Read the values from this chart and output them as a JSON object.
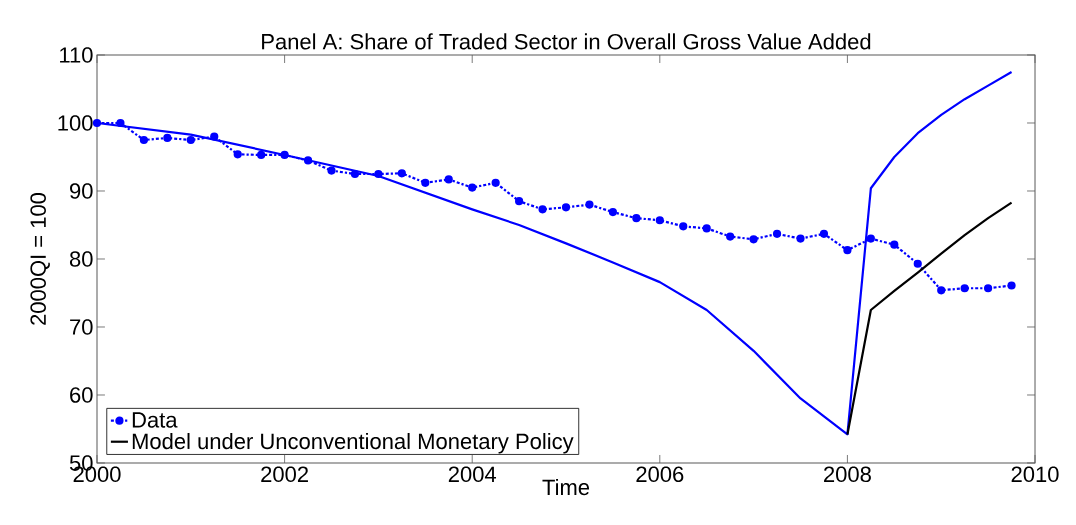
{
  "chart_data": {
    "type": "line",
    "title": "Panel A: Share of Traded Sector in Overall Gross Value Added",
    "xlabel": "Time",
    "ylabel": "2000QI = 100",
    "xlim": [
      2000,
      2010
    ],
    "ylim": [
      50,
      110
    ],
    "xticks": [
      2000,
      2002,
      2004,
      2006,
      2008,
      2010
    ],
    "yticks": [
      50,
      60,
      70,
      80,
      90,
      100,
      110
    ],
    "grid": false,
    "legend": "bottom left",
    "series": [
      {
        "name": "Data",
        "color": "#0000ff",
        "marker": "circle",
        "line_style": "dashdot",
        "x": [
          2000,
          2000.25,
          2000.5,
          2000.75,
          2001,
          2001.25,
          2001.5,
          2001.75,
          2002,
          2002.25,
          2002.5,
          2002.75,
          2003,
          2003.25,
          2003.5,
          2003.75,
          2004,
          2004.25,
          2004.5,
          2004.75,
          2005,
          2005.25,
          2005.5,
          2005.75,
          2006,
          2006.25,
          2006.5,
          2006.75,
          2007,
          2007.25,
          2007.5,
          2007.75,
          2008,
          2008.25,
          2008.5,
          2008.75,
          2009,
          2009.25,
          2009.5,
          2009.75
        ],
        "values": [
          100,
          100,
          97.5,
          97.8,
          97.5,
          98,
          95.4,
          95.3,
          95.3,
          94.5,
          93,
          92.5,
          92.5,
          92.6,
          91.2,
          91.7,
          90.5,
          91.2,
          88.5,
          87.3,
          87.6,
          88,
          86.9,
          86,
          85.7,
          84.8,
          84.5,
          83.3,
          82.9,
          83.7,
          83,
          83.7,
          81.3,
          83,
          82.1,
          79.3,
          75.4,
          75.7,
          75.7,
          76.1
        ]
      },
      {
        "color": "#0000ff",
        "marker": "none",
        "line_style": "solid",
        "x": [
          2000,
          2001,
          2002,
          2003,
          2004,
          2004.5,
          2005,
          2005.5,
          2006,
          2006.5,
          2007,
          2007.5,
          2008,
          2008.25,
          2008.5,
          2008.75,
          2009,
          2009.25,
          2009.5,
          2009.75
        ],
        "values": [
          100,
          98.3,
          95.3,
          92.2,
          87.3,
          85,
          82.3,
          79.5,
          76.6,
          72.5,
          66.5,
          59.5,
          54.2,
          90.4,
          95,
          98.5,
          101.2,
          103.5,
          105.5,
          107.5
        ]
      },
      {
        "name": "Model under Unconventional Monetary Policy",
        "color": "#000000",
        "marker": "none",
        "line_style": "solid",
        "x": [
          2008,
          2008.25,
          2008.5,
          2008.75,
          2009,
          2009.25,
          2009.5,
          2009.75
        ],
        "values": [
          54.2,
          72.5,
          75.3,
          78,
          80.8,
          83.5,
          86,
          88.3
        ]
      }
    ]
  }
}
